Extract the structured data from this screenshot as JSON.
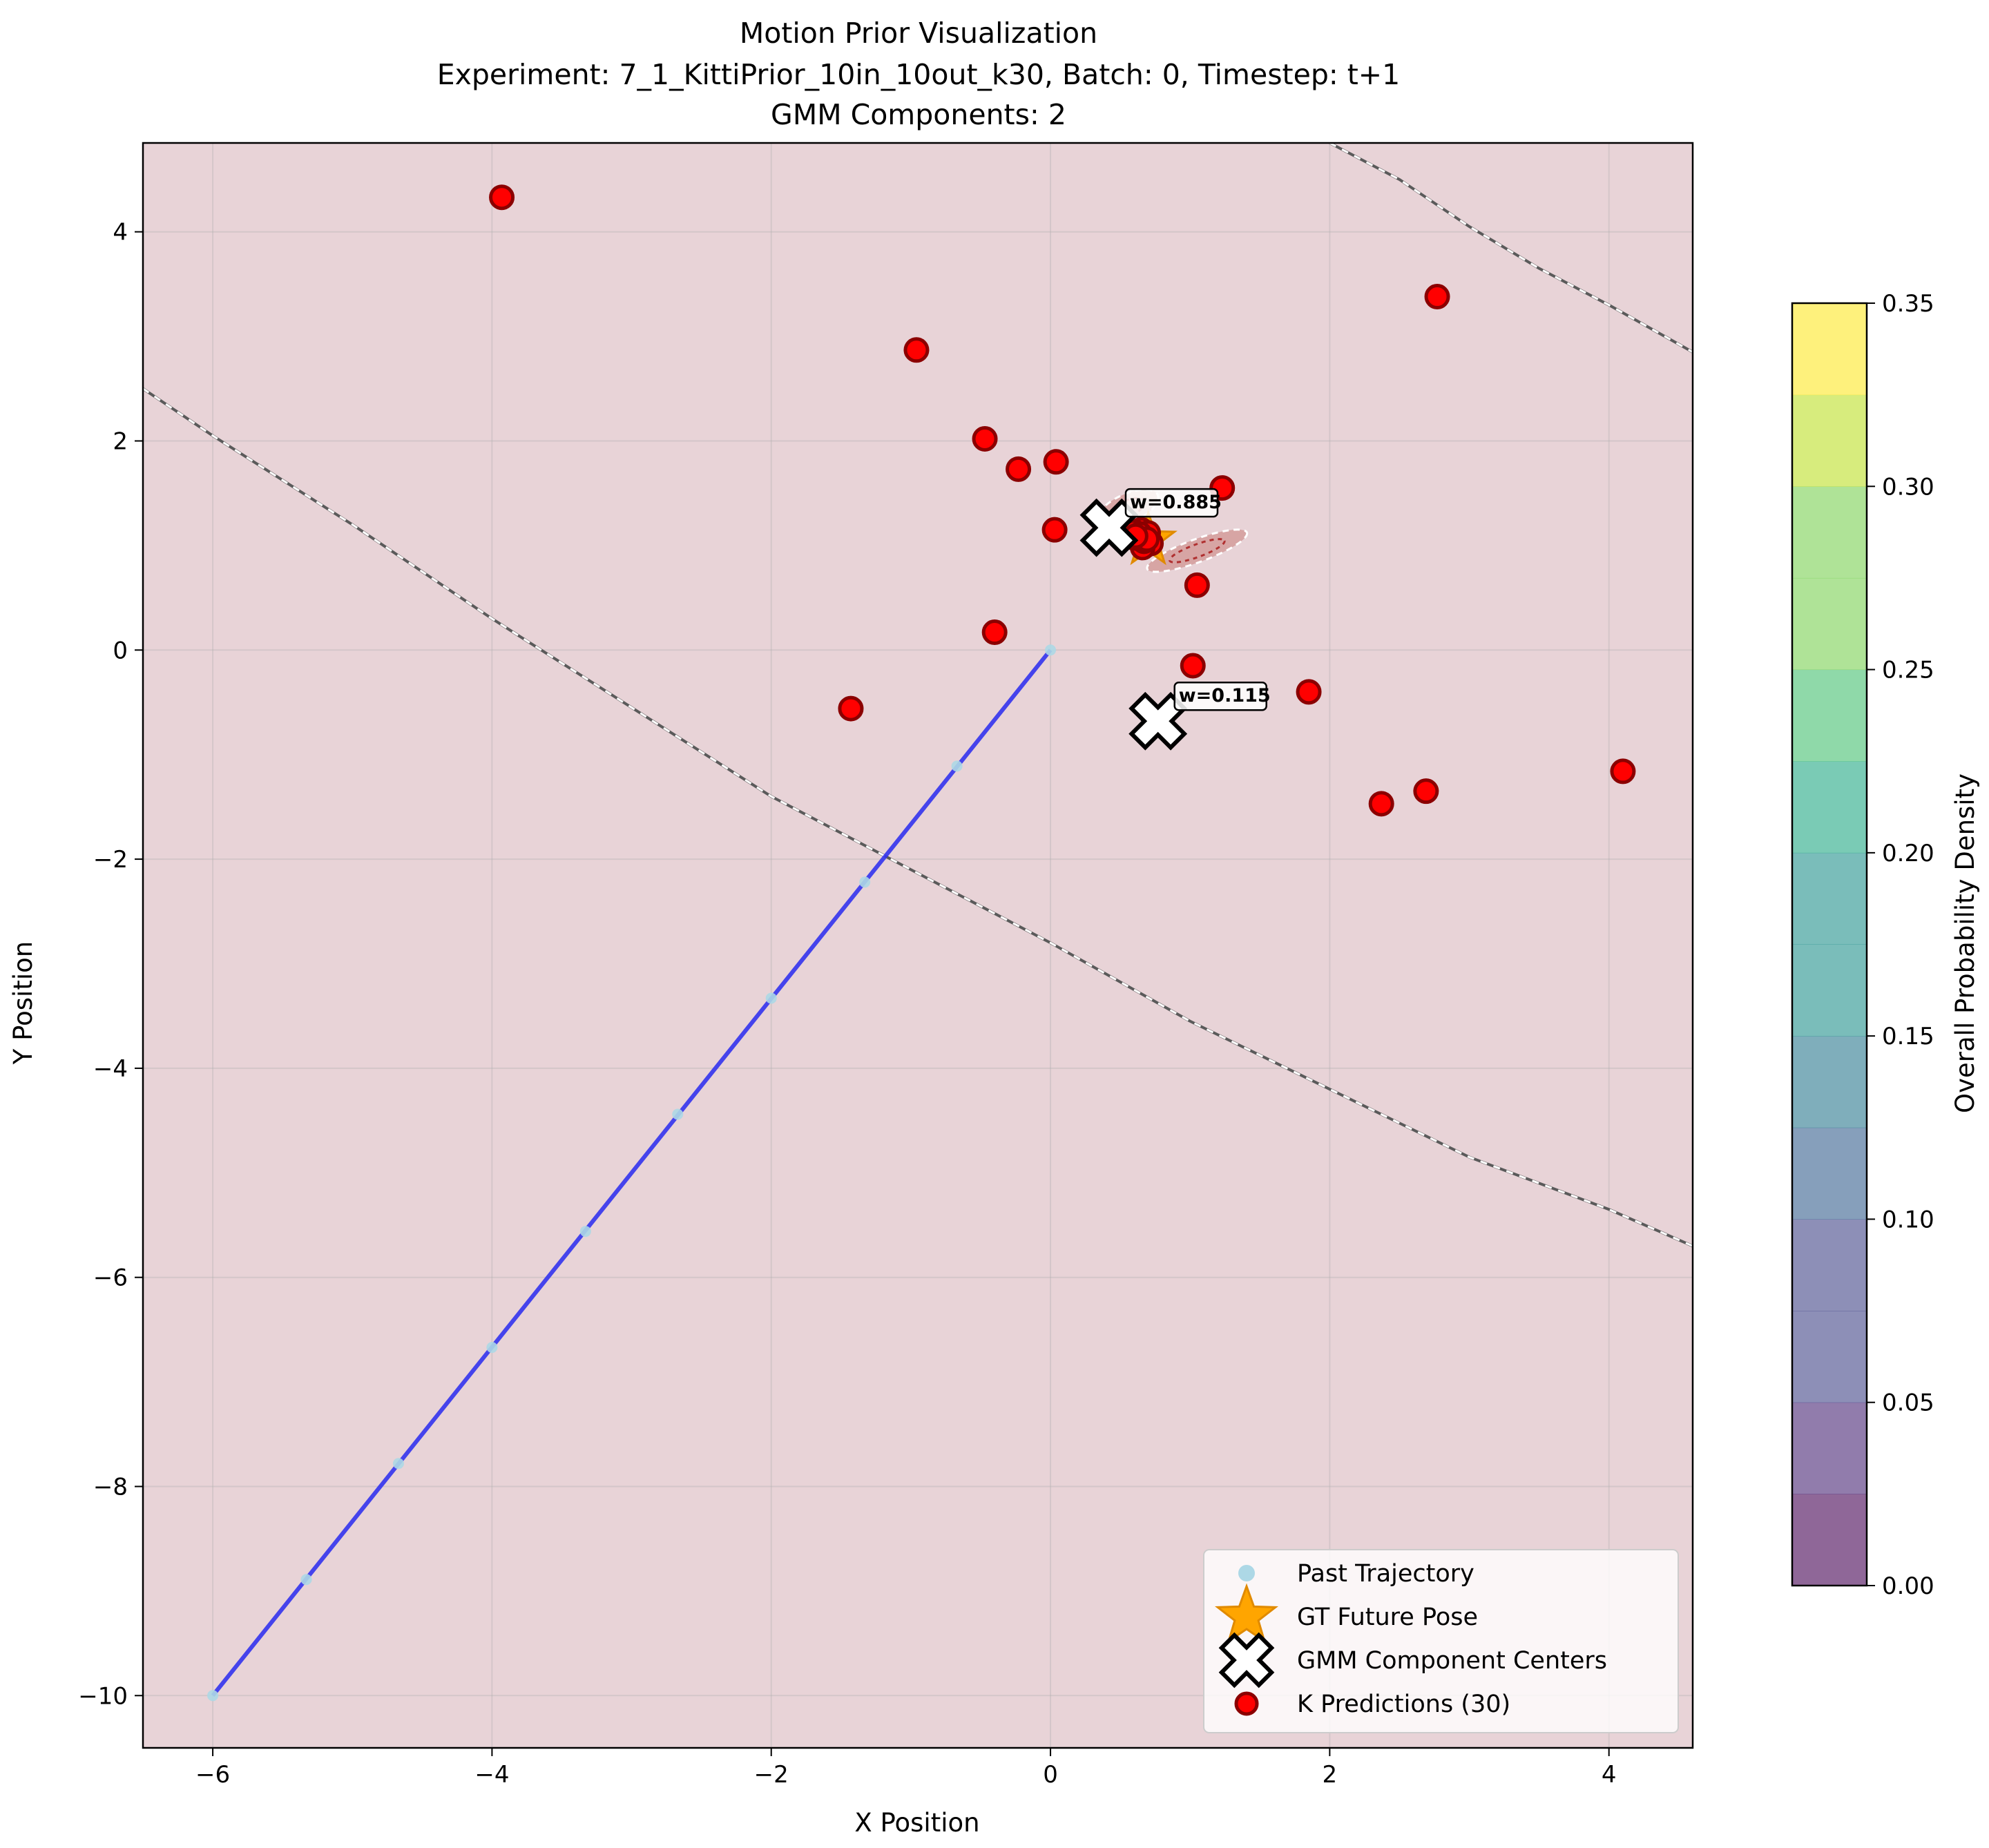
{
  "chart_data": {
    "type": "scatter",
    "title_lines": [
      "Motion Prior Visualization",
      "Experiment: 7_1_KittiPrior_10in_10out_k30, Batch: 0, Timestep: t+1",
      "GMM Components: 2"
    ],
    "xlabel": "X Position",
    "ylabel": "Y Position",
    "xlim": [
      -6.5,
      4.6
    ],
    "ylim": [
      -10.5,
      4.85
    ],
    "xticks": [
      -6,
      -4,
      -2,
      0,
      2,
      4
    ],
    "yticks": [
      -10,
      -8,
      -6,
      -4,
      -2,
      0,
      2,
      4
    ],
    "grid": true,
    "background_color": "#e8d3d7",
    "past_trajectory": {
      "name": "Past Trajectory",
      "color": "#add8e6",
      "line_color": "#3333ee",
      "x": [
        -6.0,
        -5.33,
        -4.67,
        -4.0,
        -3.33,
        -2.67,
        -2.0,
        -1.33,
        -0.67,
        0.0
      ],
      "y": [
        -10.0,
        -8.89,
        -7.78,
        -6.67,
        -5.56,
        -4.44,
        -3.33,
        -2.22,
        -1.11,
        0.0
      ]
    },
    "gt_future_pose": {
      "name": "GT Future Pose",
      "color": "#ffa500",
      "x": 0.7,
      "y": 1.05
    },
    "gmm_centers": {
      "name": "GMM Component Centers",
      "points": [
        {
          "x": 0.42,
          "y": 1.17,
          "weight_label": "w=0.885"
        },
        {
          "x": 0.77,
          "y": -0.68,
          "weight_label": "w=0.115"
        }
      ]
    },
    "k_predictions": {
      "name": "K Predictions (30)",
      "color": "#ff0000",
      "edge_color": "#8b0000",
      "x": [
        -3.93,
        -0.96,
        -0.47,
        -0.23,
        0.04,
        0.03,
        1.23,
        2.77,
        0.6,
        0.65,
        0.68,
        0.58,
        0.7,
        0.63,
        0.72,
        0.66,
        0.6,
        1.05,
        -0.4,
        -1.43,
        1.02,
        1.85,
        2.37,
        2.69,
        4.1,
        0.62,
        0.67,
        0.64,
        0.69,
        0.61
      ],
      "y": [
        4.33,
        2.87,
        2.02,
        1.73,
        1.8,
        1.15,
        1.55,
        3.38,
        1.1,
        1.15,
        1.0,
        1.08,
        1.12,
        1.05,
        1.02,
        0.98,
        1.13,
        0.62,
        0.17,
        -0.56,
        -0.15,
        -0.4,
        -1.47,
        -1.35,
        -1.16,
        1.07,
        1.04,
        1.11,
        1.06,
        1.09
      ]
    },
    "legend": {
      "position": "lower right",
      "entries": [
        "Past Trajectory",
        "GT Future Pose",
        "GMM Component Centers",
        "K Predictions (30)"
      ]
    },
    "colorbar": {
      "label": "Overall Probability Density",
      "min": 0.0,
      "max": 0.35,
      "ticks": [
        "0.00",
        "0.05",
        "0.10",
        "0.15",
        "0.20",
        "0.25",
        "0.30",
        "0.35"
      ],
      "levels": 14,
      "colormap": "viridis",
      "alpha": 0.6
    },
    "dashed_contours": [
      {
        "x": [
          -6.5,
          -6.0,
          -5.0,
          -4.0,
          -3.0,
          -2.0,
          -1.0,
          0.0,
          1.0,
          2.0,
          3.0,
          4.0,
          4.6
        ],
        "y": [
          2.5,
          2.05,
          1.2,
          0.3,
          -0.55,
          -1.4,
          -2.1,
          -2.8,
          -3.55,
          -4.2,
          -4.85,
          -5.35,
          -5.7
        ]
      },
      {
        "x": [
          2.0,
          2.5,
          3.0,
          3.5,
          4.0,
          4.6
        ],
        "y": [
          4.85,
          4.5,
          4.05,
          3.65,
          3.3,
          2.85
        ]
      }
    ],
    "density_contours": [
      {
        "cx": 0.55,
        "cy": 1.35,
        "rx": 0.24,
        "ry": 0.14,
        "angle": -25
      },
      {
        "cx": 1.05,
        "cy": 0.95,
        "rx": 0.38,
        "ry": 0.11,
        "angle": -20
      }
    ]
  }
}
